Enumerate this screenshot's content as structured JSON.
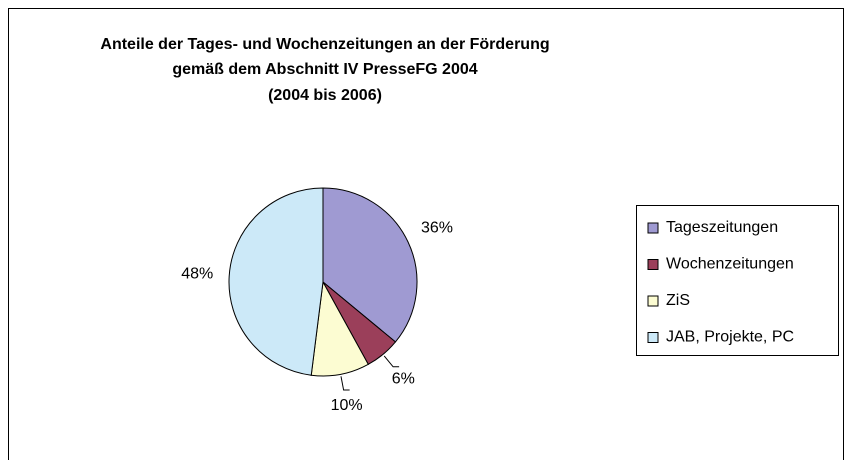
{
  "chart_data": {
    "type": "pie",
    "title": [
      "Anteile der Tages- und Wochenzeitungen an der Förderung",
      "gemäß dem Abschnitt IV PresseFG 2004",
      "(2004 bis 2006)"
    ],
    "categories": [
      "Tageszeitungen",
      "Wochenzeitungen",
      "ZiS",
      "JAB, Projekte, PC"
    ],
    "values": [
      36,
      6,
      10,
      48
    ],
    "value_labels": [
      "36%",
      "6%",
      "10%",
      "48%"
    ],
    "colors": [
      "#9f9ad2",
      "#9b3f5a",
      "#fcfcd2",
      "#cce9f8"
    ],
    "legend": "right"
  }
}
